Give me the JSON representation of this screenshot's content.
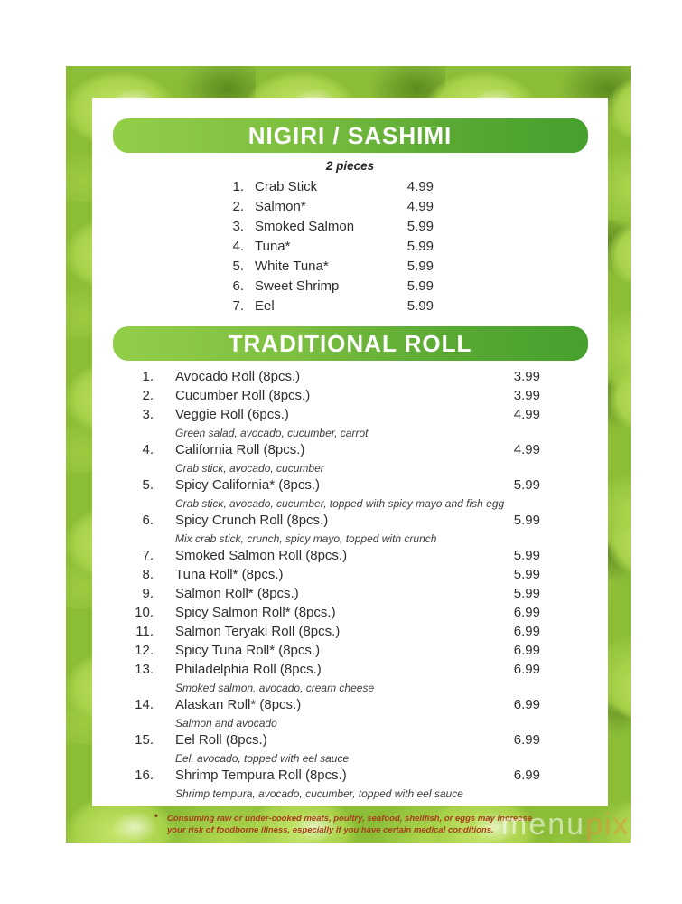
{
  "sections": {
    "nigiri": {
      "title": "NIGIRI / SASHIMI",
      "subtitle": "2 pieces",
      "items": [
        {
          "num": "1.",
          "name": "Crab Stick",
          "price": "4.99"
        },
        {
          "num": "2.",
          "name": "Salmon*",
          "price": "4.99"
        },
        {
          "num": "3.",
          "name": "Smoked Salmon",
          "price": "5.99"
        },
        {
          "num": "4.",
          "name": "Tuna*",
          "price": "5.99"
        },
        {
          "num": "5.",
          "name": "White Tuna*",
          "price": "5.99"
        },
        {
          "num": "6.",
          "name": "Sweet Shrimp",
          "price": "5.99"
        },
        {
          "num": "7.",
          "name": "Eel",
          "price": "5.99"
        }
      ]
    },
    "traditional": {
      "title": "TRADITIONAL ROLL",
      "items": [
        {
          "num": "1.",
          "name": "Avocado Roll (8pcs.)",
          "price": "3.99"
        },
        {
          "num": "2.",
          "name": "Cucumber Roll (8pcs.)",
          "price": "3.99"
        },
        {
          "num": "3.",
          "name": "Veggie Roll (6pcs.)",
          "price": "4.99",
          "desc": "Green salad, avocado, cucumber, carrot"
        },
        {
          "num": "4.",
          "name": "California Roll (8pcs.)",
          "price": "4.99",
          "desc": "Crab stick, avocado, cucumber"
        },
        {
          "num": "5.",
          "name": "Spicy California* (8pcs.)",
          "price": "5.99",
          "desc": "Crab stick, avocado, cucumber, topped with spicy mayo and fish egg"
        },
        {
          "num": "6.",
          "name": "Spicy Crunch Roll (8pcs.)",
          "price": "5.99",
          "desc": "Mix crab stick, crunch, spicy mayo, topped with crunch"
        },
        {
          "num": "7.",
          "name": "Smoked Salmon Roll (8pcs.)",
          "price": "5.99"
        },
        {
          "num": "8.",
          "name": "Tuna Roll* (8pcs.)",
          "price": "5.99"
        },
        {
          "num": "9.",
          "name": "Salmon Roll* (8pcs.)",
          "price": "5.99"
        },
        {
          "num": "10.",
          "name": "Spicy Salmon Roll* (8pcs.)",
          "price": "6.99"
        },
        {
          "num": "11.",
          "name": "Salmon Teryaki Roll (8pcs.)",
          "price": "6.99"
        },
        {
          "num": "12.",
          "name": "Spicy Tuna Roll* (8pcs.)",
          "price": "6.99"
        },
        {
          "num": "13.",
          "name": "Philadelphia Roll (8pcs.)",
          "price": "6.99",
          "desc": "Smoked salmon, avocado, cream cheese"
        },
        {
          "num": "14.",
          "name": "Alaskan Roll* (8pcs.)",
          "price": "6.99",
          "desc": "Salmon and avocado"
        },
        {
          "num": "15.",
          "name": "Eel Roll (8pcs.)",
          "price": "6.99",
          "desc": "Eel, avocado, topped with eel sauce"
        },
        {
          "num": "16.",
          "name": "Shrimp Tempura Roll (8pcs.)",
          "price": "6.99",
          "desc": "Shrimp tempura, avocado, cucumber, topped with eel sauce"
        }
      ]
    }
  },
  "footer": {
    "asterisk": "*",
    "disclaimer": "Consuming raw or under-cooked meats, poultry, seafood, shellfish, or eggs may increase your risk of foodborne illness, especially if you have certain medical conditions.",
    "watermark_menu": "menu",
    "watermark_pix": "pix"
  },
  "colors": {
    "bar_gradient_left": "#93ce48",
    "bar_gradient_right": "#47a02d",
    "disclaimer_red": "#a83c1e",
    "text": "#2e2e2e",
    "edamame_base": "#8cbd37"
  }
}
